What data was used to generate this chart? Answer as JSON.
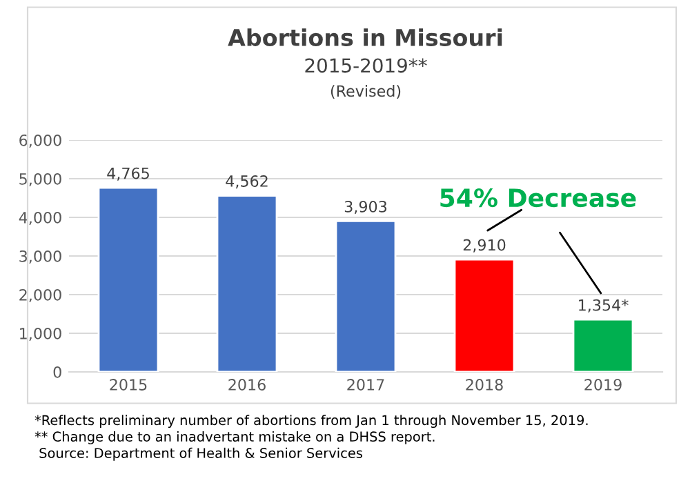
{
  "chart_data": {
    "type": "bar",
    "title": "Abortions in Missouri",
    "subtitle": "2015-2019**",
    "categories": [
      "2015",
      "2016",
      "2017",
      "2018",
      "2019"
    ],
    "values": [
      4765,
      4562,
      3903,
      2910,
      1354
    ],
    "colors": [
      "#4472c4",
      "#4472c4",
      "#4472c4",
      "#ff0000",
      "#00b050"
    ],
    "value_labels": [
      "4,765",
      "4,562",
      "3,903",
      "2,910",
      "1,354*"
    ],
    "ylim": [
      0,
      6000
    ],
    "yticks": [
      {
        "value": 0,
        "label": "0"
      },
      {
        "value": 1000,
        "label": "1,000"
      },
      {
        "value": 2000,
        "label": "2,000"
      },
      {
        "value": 3000,
        "label": "3,000"
      },
      {
        "value": 4000,
        "label": "4,000"
      },
      {
        "value": 5000,
        "label": "5,000"
      },
      {
        "value": 6000,
        "label": "6,000"
      }
    ],
    "grid": "y",
    "annotations": [
      "(Revised)",
      "54% Decrease",
      "*Reflects preliminary number of abortions from Jan 1 through November 15, 2019.",
      "** Change due to an inadvertant mistake on a DHSS report.",
      " Source: Department of Health & Senior Services"
    ]
  }
}
